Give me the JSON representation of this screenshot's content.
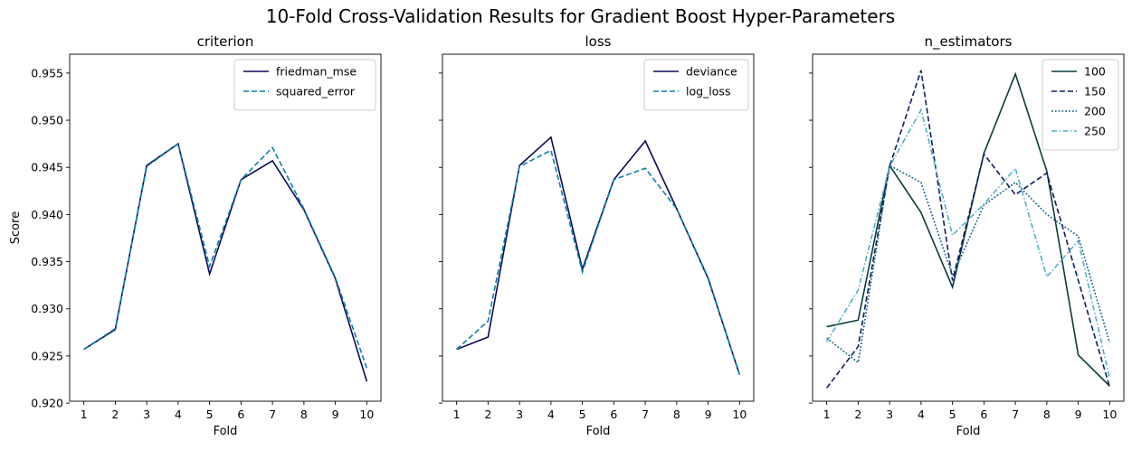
{
  "figure": {
    "title": "10-Fold Cross-Validation Results for Gradient Boost Hyper-Parameters"
  },
  "chart_data": [
    {
      "type": "line",
      "title": "criterion",
      "xlabel": "Fold",
      "ylabel": "Score",
      "x": [
        1,
        2,
        3,
        4,
        5,
        6,
        7,
        8,
        9,
        10
      ],
      "xlim": [
        0.55,
        10.45
      ],
      "ylim": [
        0.9202,
        0.957
      ],
      "yticks": [
        0.92,
        0.925,
        0.93,
        0.935,
        0.94,
        0.945,
        0.95,
        0.955
      ],
      "ytick_labels": [
        "0.920",
        "0.925",
        "0.930",
        "0.935",
        "0.940",
        "0.945",
        "0.950",
        "0.955"
      ],
      "grid": false,
      "legend": "top-right",
      "series": [
        {
          "name": "friedman_mse",
          "color": "#0a0a5a",
          "dash": "solid",
          "values": [
            0.9257,
            0.9278,
            0.9452,
            0.9475,
            0.9337,
            0.9437,
            0.9457,
            0.9405,
            0.9332,
            0.9223
          ]
        },
        {
          "name": "squared_error",
          "color": "#0a7fa8",
          "dash": "dashed",
          "values": [
            0.9257,
            0.9279,
            0.9451,
            0.9475,
            0.9345,
            0.9437,
            0.9471,
            0.9406,
            0.9333,
            0.9237
          ]
        }
      ]
    },
    {
      "type": "line",
      "title": "loss",
      "xlabel": "Fold",
      "ylabel": "",
      "x": [
        1,
        2,
        3,
        4,
        5,
        6,
        7,
        8,
        9,
        10
      ],
      "xlim": [
        0.55,
        10.45
      ],
      "ylim": [
        0.9202,
        0.957
      ],
      "grid": false,
      "legend": "top-right",
      "series": [
        {
          "name": "deviance",
          "color": "#0a0a5a",
          "dash": "solid",
          "values": [
            0.9257,
            0.927,
            0.9452,
            0.9482,
            0.9342,
            0.9437,
            0.9478,
            0.9406,
            0.9332,
            0.923
          ]
        },
        {
          "name": "log_loss",
          "color": "#0a7fa8",
          "dash": "dashed",
          "values": [
            0.9257,
            0.9287,
            0.9451,
            0.9468,
            0.9339,
            0.9437,
            0.9449,
            0.9406,
            0.9333,
            0.923
          ]
        }
      ]
    },
    {
      "type": "line",
      "title": "n_estimators",
      "xlabel": "Fold",
      "ylabel": "",
      "x": [
        1,
        2,
        3,
        4,
        5,
        6,
        7,
        8,
        9,
        10
      ],
      "xlim": [
        0.55,
        10.45
      ],
      "ylim": [
        0.9202,
        0.957
      ],
      "grid": false,
      "legend": "top-right",
      "series": [
        {
          "name": "100",
          "color": "#0b3b3b",
          "dash": "solid",
          "values": [
            0.9281,
            0.9288,
            0.9452,
            0.9402,
            0.9323,
            0.9465,
            0.9549,
            0.9446,
            0.9251,
            0.9218
          ]
        },
        {
          "name": "150",
          "color": "#0c1f5e",
          "dash": "dashed",
          "values": [
            0.9216,
            0.926,
            0.9451,
            0.9553,
            0.933,
            0.9464,
            0.9421,
            0.9444,
            0.933,
            0.9217
          ]
        },
        {
          "name": "200",
          "color": "#0f5f82",
          "dash": "dotted",
          "values": [
            0.9269,
            0.9243,
            0.9452,
            0.9434,
            0.9335,
            0.941,
            0.9434,
            0.94,
            0.9377,
            0.9264
          ]
        },
        {
          "name": "250",
          "color": "#4fb0c8",
          "dash": "dashdot",
          "values": [
            0.9265,
            0.932,
            0.9451,
            0.9511,
            0.9378,
            0.9411,
            0.9449,
            0.9334,
            0.9372,
            0.9226
          ]
        }
      ]
    }
  ]
}
